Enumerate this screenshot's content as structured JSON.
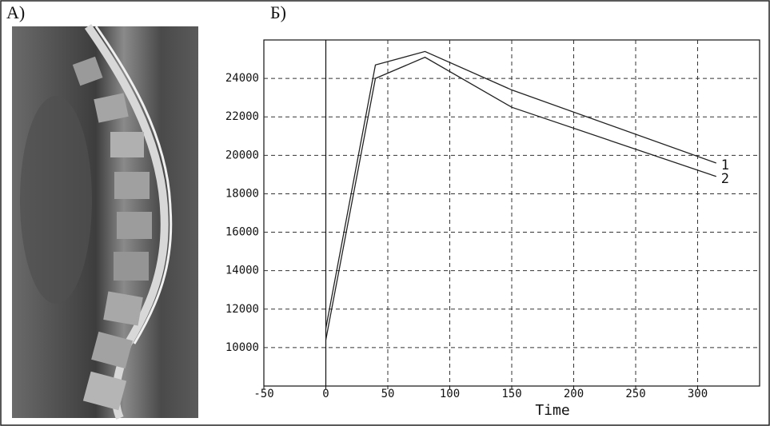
{
  "panel_labels": [
    "А)",
    "Б)"
  ],
  "chart_data": {
    "type": "line",
    "x_label": "Time",
    "series": [
      {
        "name": "1",
        "color": "#222222",
        "x": [
          0,
          40,
          80,
          150,
          315
        ],
        "values": [
          11000,
          24700,
          25400,
          23400,
          19600
        ]
      },
      {
        "name": "2",
        "color": "#222222",
        "x": [
          0,
          40,
          80,
          150,
          315
        ],
        "values": [
          10400,
          24000,
          25100,
          22500,
          18900
        ]
      }
    ],
    "xlim": [
      -50,
      350
    ],
    "xticks": [
      -50,
      0,
      50,
      100,
      150,
      200,
      250,
      300
    ],
    "ylim": [
      8000,
      26000
    ],
    "yticks": [
      10000,
      12000,
      14000,
      16000,
      18000,
      20000,
      22000,
      24000
    ],
    "grid": true
  }
}
